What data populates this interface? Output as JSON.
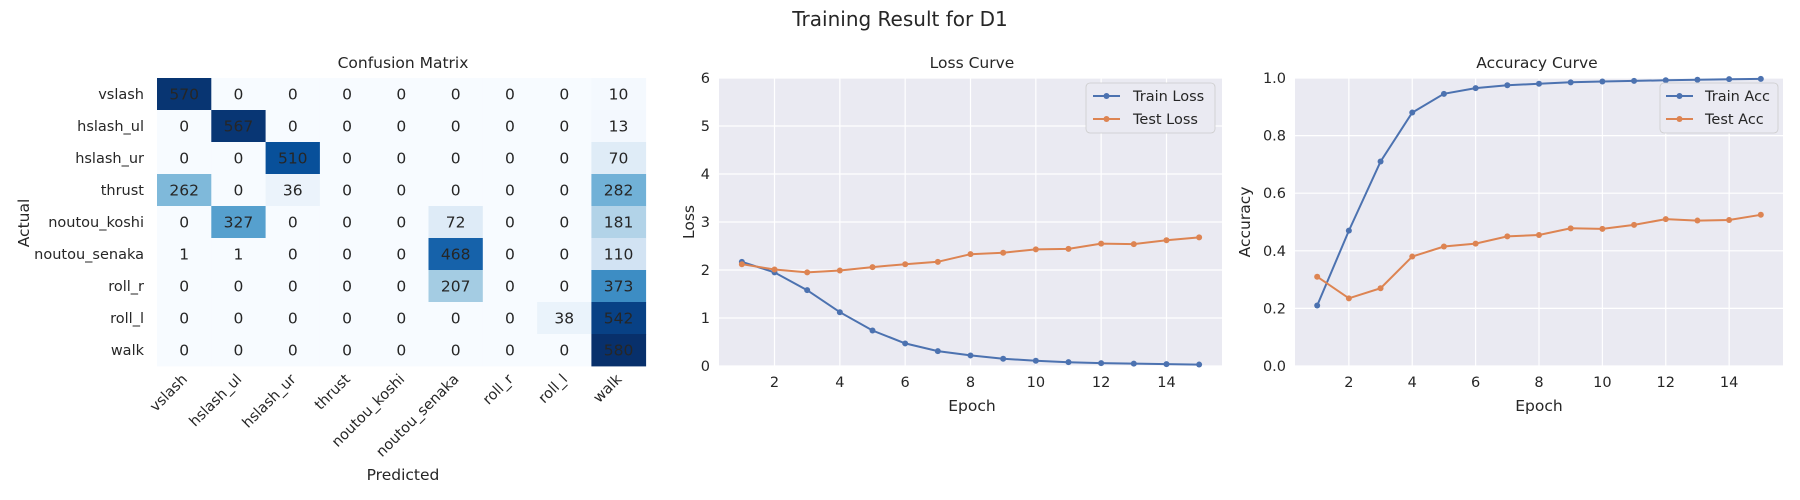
{
  "suptitle": "Training Result for D1",
  "chart_data": [
    {
      "type": "heatmap",
      "title": "Confusion Matrix",
      "xlabel": "Predicted",
      "ylabel": "Actual",
      "row_labels": [
        "vslash",
        "hslash_ul",
        "hslash_ur",
        "thrust",
        "noutou_koshi",
        "noutou_senaka",
        "roll_r",
        "roll_l",
        "walk"
      ],
      "col_labels": [
        "vslash",
        "hslash_ul",
        "hslash_ur",
        "thrust",
        "noutou_koshi",
        "noutou_senaka",
        "roll_r",
        "roll_l",
        "walk"
      ],
      "values": [
        [
          570,
          0,
          0,
          0,
          0,
          0,
          0,
          0,
          10
        ],
        [
          0,
          567,
          0,
          0,
          0,
          0,
          0,
          0,
          13
        ],
        [
          0,
          0,
          510,
          0,
          0,
          0,
          0,
          0,
          70
        ],
        [
          262,
          0,
          36,
          0,
          0,
          0,
          0,
          0,
          282
        ],
        [
          0,
          327,
          0,
          0,
          0,
          72,
          0,
          0,
          181
        ],
        [
          1,
          1,
          0,
          0,
          0,
          468,
          0,
          0,
          110
        ],
        [
          0,
          0,
          0,
          0,
          0,
          207,
          0,
          0,
          373
        ],
        [
          0,
          0,
          0,
          0,
          0,
          0,
          0,
          38,
          542
        ],
        [
          0,
          0,
          0,
          0,
          0,
          0,
          0,
          0,
          580
        ]
      ],
      "colormap": "Blues",
      "vmin": 0,
      "vmax": 580
    },
    {
      "type": "line",
      "title": "Loss Curve",
      "xlabel": "Epoch",
      "ylabel": "Loss",
      "x": [
        1,
        2,
        3,
        4,
        5,
        6,
        7,
        8,
        9,
        10,
        11,
        12,
        13,
        14,
        15
      ],
      "xticks": [
        2,
        4,
        6,
        8,
        10,
        12,
        14
      ],
      "xlim": [
        0.3,
        15.7
      ],
      "ylim": [
        0,
        6
      ],
      "yticks": [
        0,
        1,
        2,
        3,
        4,
        5,
        6
      ],
      "ytick_labels": [
        "0",
        "1",
        "2",
        "3",
        "4",
        "5",
        "6"
      ],
      "legend": "top-right",
      "grid": true,
      "series": [
        {
          "name": "Train Loss",
          "color": "#4c72b0",
          "values": [
            2.17,
            1.95,
            1.58,
            1.12,
            0.74,
            0.47,
            0.31,
            0.22,
            0.15,
            0.11,
            0.08,
            0.06,
            0.05,
            0.04,
            0.03
          ]
        },
        {
          "name": "Test Loss",
          "color": "#dd8452",
          "values": [
            2.12,
            2.01,
            1.95,
            1.99,
            2.06,
            2.12,
            2.17,
            2.33,
            2.36,
            2.43,
            2.44,
            2.55,
            2.54,
            2.62,
            2.68
          ]
        }
      ]
    },
    {
      "type": "line",
      "title": "Accuracy Curve",
      "xlabel": "Epoch",
      "ylabel": "Accuracy",
      "x": [
        1,
        2,
        3,
        4,
        5,
        6,
        7,
        8,
        9,
        10,
        11,
        12,
        13,
        14,
        15
      ],
      "xticks": [
        2,
        4,
        6,
        8,
        10,
        12,
        14
      ],
      "xlim": [
        0.3,
        15.7
      ],
      "ylim": [
        0,
        1
      ],
      "yticks": [
        0,
        0.2,
        0.4,
        0.6,
        0.8,
        1.0
      ],
      "ytick_labels": [
        "0.0",
        "0.2",
        "0.4",
        "0.6",
        "0.8",
        "1.0"
      ],
      "legend": "top-right",
      "grid": true,
      "series": [
        {
          "name": "Train Acc",
          "color": "#4c72b0",
          "values": [
            0.21,
            0.47,
            0.71,
            0.88,
            0.945,
            0.965,
            0.975,
            0.98,
            0.985,
            0.988,
            0.99,
            0.992,
            0.994,
            0.996,
            0.997
          ]
        },
        {
          "name": "Test Acc",
          "color": "#dd8452",
          "values": [
            0.31,
            0.235,
            0.27,
            0.38,
            0.415,
            0.425,
            0.45,
            0.455,
            0.478,
            0.476,
            0.49,
            0.51,
            0.505,
            0.507,
            0.525
          ]
        }
      ]
    }
  ]
}
